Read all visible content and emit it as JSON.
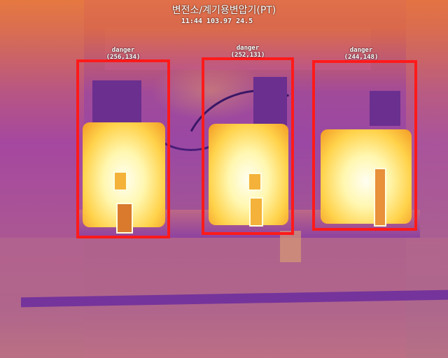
{
  "overlay": {
    "title": "변전소/계기용변압기(PT)",
    "readout": "11:44 103.97 24.5"
  },
  "detections": [
    {
      "label": "danger",
      "coords": "(256,134)"
    },
    {
      "label": "danger",
      "coords": "(252,131)"
    },
    {
      "label": "danger",
      "coords": "(244,148)"
    }
  ],
  "colors": {
    "box": "#ff1a1a",
    "hot": "#fffef2",
    "warm": "#f29a24",
    "cool": "#7a2a8c"
  }
}
